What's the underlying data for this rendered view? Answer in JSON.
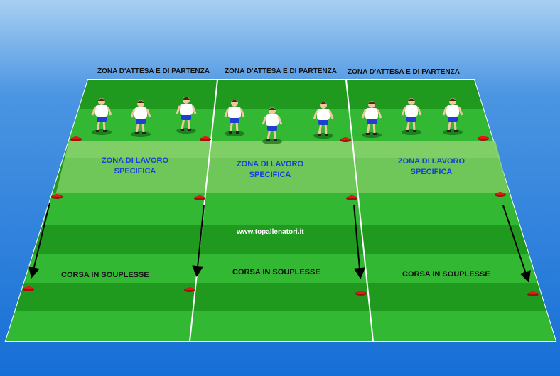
{
  "top_labels": [
    "ZONA D'ATTESA E DI PARTENZA",
    "ZONA D'ATTESA E DI PARTENZA",
    "ZONA D'ATTESA E DI PARTENZA"
  ],
  "zone_labels": [
    {
      "line1": "ZONA DI LAVORO",
      "line2": "SPECIFICA"
    },
    {
      "line1": "ZONA DI LAVORO",
      "line2": "SPECIFICA"
    },
    {
      "line1": "ZONA DI LAVORO",
      "line2": "SPECIFICA"
    }
  ],
  "run_labels": [
    "CORSA IN SOUPLESSE",
    "CORSA IN SOUPLESSE",
    "CORSA IN SOUPLESSE"
  ],
  "watermark": "www.topallenatori.it",
  "colors": {
    "background": "#1a72d8",
    "grass_dark": "#1f9a1f",
    "grass_light": "#33b833",
    "work_zone": "#6fc95a",
    "cone": "#e01818",
    "shirt": "#ffffff",
    "shorts": "#1f3fd0",
    "zone_text": "#1a3fd8"
  },
  "players_per_lane": 3,
  "icons": [
    "cone-icon",
    "player-icon",
    "arrow-icon"
  ]
}
